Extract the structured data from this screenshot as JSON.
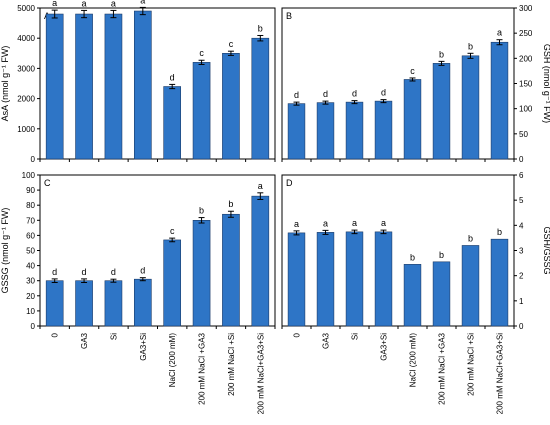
{
  "chart_data": [
    {
      "type": "bar",
      "panel": "A",
      "categories": [
        "0",
        "GA3",
        "Si",
        "GA3+Si",
        "NaCl (200 mM)",
        "200 mM NaCl +GA3",
        "200 mM NaCl +Si",
        "200 mM NaCl+GA3+Si"
      ],
      "values": [
        4800,
        4800,
        4800,
        4900,
        2400,
        3200,
        3500,
        4000
      ],
      "errors": [
        130,
        120,
        120,
        120,
        70,
        70,
        70,
        90
      ],
      "letters": [
        "a",
        "a",
        "a",
        "a",
        "d",
        "c",
        "c",
        "b"
      ],
      "ylabel": "AsA (nmol g⁻¹ FW)",
      "ylim": [
        0,
        5000
      ],
      "yticks": [
        0,
        1000,
        2000,
        3000,
        4000,
        5000
      ],
      "ytick_labels": [
        "0",
        "1000",
        "2000",
        "3000",
        "4000",
        "5000"
      ],
      "y_axis_side": "left"
    },
    {
      "type": "bar",
      "panel": "B",
      "categories": [
        "0",
        "GA3",
        "Si",
        "GA3+Si",
        "NaCl (200 mM)",
        "200 mM NaCl +GA3",
        "200 mM NaCl +Si",
        "200 mM NaCl+GA3+Si"
      ],
      "values": [
        110,
        112,
        113,
        115,
        158,
        190,
        205,
        232
      ],
      "errors": [
        3,
        3,
        3,
        3,
        3,
        4,
        5,
        5
      ],
      "letters": [
        "d",
        "d",
        "d",
        "d",
        "c",
        "b",
        "b",
        "a"
      ],
      "ylabel": "GSH (nmol g⁻¹ FW)",
      "ylim": [
        0,
        300
      ],
      "yticks": [
        0,
        50,
        100,
        150,
        200,
        250,
        300
      ],
      "ytick_labels": [
        "0",
        "50",
        "100",
        "150",
        "200",
        "250",
        "300"
      ],
      "y_axis_side": "right"
    },
    {
      "type": "bar",
      "panel": "C",
      "categories": [
        "0",
        "GA3",
        "Si",
        "GA3+Si",
        "NaCl (200 mM)",
        "200 mM NaCl +GA3",
        "200 mM NaCl +Si",
        "200 mM NaCl+GA3+Si"
      ],
      "values": [
        30,
        30,
        30,
        31,
        57,
        70,
        74,
        86
      ],
      "errors": [
        1.2,
        1.2,
        1.0,
        1.0,
        1.2,
        1.8,
        2.0,
        2.2
      ],
      "letters": [
        "d",
        "d",
        "d",
        "d",
        "c",
        "b",
        "b",
        "a"
      ],
      "ylabel": "GSSG (nmol g⁻¹ FW)",
      "ylim": [
        0,
        100
      ],
      "yticks": [
        0,
        10,
        20,
        30,
        40,
        50,
        60,
        70,
        80,
        90,
        100
      ],
      "ytick_labels": [
        "0",
        "10",
        "20",
        "30",
        "40",
        "50",
        "60",
        "70",
        "80",
        "90",
        "100"
      ],
      "y_axis_side": "left"
    },
    {
      "type": "bar",
      "panel": "D",
      "categories": [
        "0",
        "GA3",
        "Si",
        "GA3+Si",
        "NaCl (200 mM)",
        "200 mM NaCl +GA3",
        "200 mM NaCl +Si",
        "200 mM NaCl+GA3+Si"
      ],
      "values": [
        3.7,
        3.72,
        3.74,
        3.74,
        2.45,
        2.55,
        3.2,
        3.45
      ],
      "errors": [
        0.08,
        0.08,
        0.07,
        0.07,
        0,
        0,
        0,
        0
      ],
      "letters": [
        "a",
        "a",
        "a",
        "a",
        "b",
        "b",
        "b",
        "b"
      ],
      "ylabel": "GSH/GSSG",
      "ylim": [
        0,
        6
      ],
      "yticks": [
        0,
        1,
        2,
        3,
        4,
        5,
        6
      ],
      "ytick_labels": [
        "0",
        "1",
        "2",
        "3",
        "4",
        "5",
        "6"
      ],
      "y_axis_side": "right"
    }
  ],
  "style": {
    "bar_color": "#2e75c6",
    "bar_edge_color": "#1b3a66",
    "axis_color": "#000000"
  }
}
